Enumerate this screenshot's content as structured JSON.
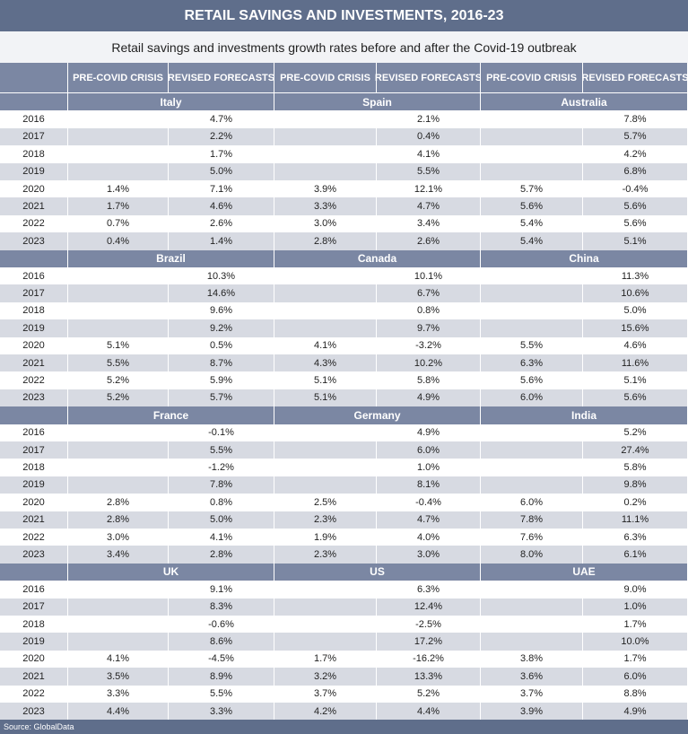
{
  "header": {
    "title": "RETAIL SAVINGS AND INVESTMENTS, 2016-23",
    "subtitle": "Retail savings and investments growth rates before and after the Covid-19 outbreak"
  },
  "table": {
    "columns": [
      "PRE-COVID CRISIS",
      "REVISED FORECASTS",
      "PRE-COVID CRISIS",
      "REVISED FORECASTS",
      "PRE-COVID CRISIS",
      "REVISED FORECASTS"
    ],
    "groups": [
      {
        "countries": [
          "Italy",
          "Spain",
          "Australia"
        ],
        "rows": [
          [
            "2016",
            null,
            "4.7%",
            null,
            "2.1%",
            null,
            "7.8%"
          ],
          [
            "2017",
            null,
            "2.2%",
            null,
            "0.4%",
            null,
            "5.7%"
          ],
          [
            "2018",
            null,
            "1.7%",
            null,
            "4.1%",
            null,
            "4.2%"
          ],
          [
            "2019",
            null,
            "5.0%",
            null,
            "5.5%",
            null,
            "6.8%"
          ],
          [
            "2020",
            "1.4%",
            "7.1%",
            "3.9%",
            "12.1%",
            "5.7%",
            "-0.4%"
          ],
          [
            "2021",
            "1.7%",
            "4.6%",
            "3.3%",
            "4.7%",
            "5.6%",
            "5.6%"
          ],
          [
            "2022",
            "0.7%",
            "2.6%",
            "3.0%",
            "3.4%",
            "5.4%",
            "5.6%"
          ],
          [
            "2023",
            "0.4%",
            "1.4%",
            "2.8%",
            "2.6%",
            "5.4%",
            "5.1%"
          ]
        ]
      },
      {
        "countries": [
          "Brazil",
          "Canada",
          "China"
        ],
        "rows": [
          [
            "2016",
            null,
            "10.3%",
            null,
            "10.1%",
            null,
            "11.3%"
          ],
          [
            "2017",
            null,
            "14.6%",
            null,
            "6.7%",
            null,
            "10.6%"
          ],
          [
            "2018",
            null,
            "9.6%",
            null,
            "0.8%",
            null,
            "5.0%"
          ],
          [
            "2019",
            null,
            "9.2%",
            null,
            "9.7%",
            null,
            "15.6%"
          ],
          [
            "2020",
            "5.1%",
            "0.5%",
            "4.1%",
            "-3.2%",
            "5.5%",
            "4.6%"
          ],
          [
            "2021",
            "5.5%",
            "8.7%",
            "4.3%",
            "10.2%",
            "6.3%",
            "11.6%"
          ],
          [
            "2022",
            "5.2%",
            "5.9%",
            "5.1%",
            "5.8%",
            "5.6%",
            "5.1%"
          ],
          [
            "2023",
            "5.2%",
            "5.7%",
            "5.1%",
            "4.9%",
            "6.0%",
            "5.6%"
          ]
        ]
      },
      {
        "countries": [
          "France",
          "Germany",
          "India"
        ],
        "rows": [
          [
            "2016",
            null,
            "-0.1%",
            null,
            "4.9%",
            null,
            "5.2%"
          ],
          [
            "2017",
            null,
            "5.5%",
            null,
            "6.0%",
            null,
            "27.4%"
          ],
          [
            "2018",
            null,
            "-1.2%",
            null,
            "1.0%",
            null,
            "5.8%"
          ],
          [
            "2019",
            null,
            "7.8%",
            null,
            "8.1%",
            null,
            "9.8%"
          ],
          [
            "2020",
            "2.8%",
            "0.8%",
            "2.5%",
            "-0.4%",
            "6.0%",
            "0.2%"
          ],
          [
            "2021",
            "2.8%",
            "5.0%",
            "2.3%",
            "4.7%",
            "7.8%",
            "11.1%"
          ],
          [
            "2022",
            "3.0%",
            "4.1%",
            "1.9%",
            "4.0%",
            "7.6%",
            "6.3%"
          ],
          [
            "2023",
            "3.4%",
            "2.8%",
            "2.3%",
            "3.0%",
            "8.0%",
            "6.1%"
          ]
        ]
      },
      {
        "countries": [
          "UK",
          "US",
          "UAE"
        ],
        "rows": [
          [
            "2016",
            null,
            "9.1%",
            null,
            "6.3%",
            null,
            "9.0%"
          ],
          [
            "2017",
            null,
            "8.3%",
            null,
            "12.4%",
            null,
            "1.0%"
          ],
          [
            "2018",
            null,
            "-0.6%",
            null,
            "-2.5%",
            null,
            "1.7%"
          ],
          [
            "2019",
            null,
            "8.6%",
            null,
            "17.2%",
            null,
            "10.0%"
          ],
          [
            "2020",
            "4.1%",
            "-4.5%",
            "1.7%",
            "-16.2%",
            "3.8%",
            "1.7%"
          ],
          [
            "2021",
            "3.5%",
            "8.9%",
            "3.2%",
            "13.3%",
            "3.6%",
            "6.0%"
          ],
          [
            "2022",
            "3.3%",
            "5.5%",
            "3.7%",
            "5.2%",
            "3.7%",
            "8.8%"
          ],
          [
            "2023",
            "4.4%",
            "3.3%",
            "4.2%",
            "4.4%",
            "3.9%",
            "4.9%"
          ]
        ]
      }
    ]
  },
  "footer": {
    "source": "Source: GlobalData"
  }
}
